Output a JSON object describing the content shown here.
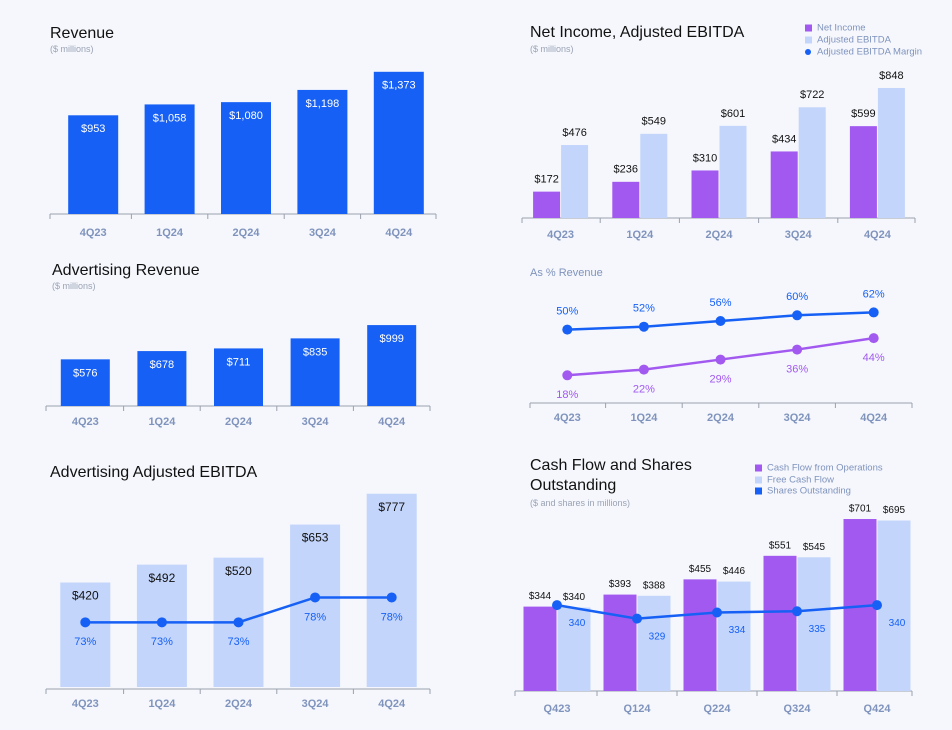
{
  "chart_data": [
    {
      "type": "bar",
      "title": "Revenue",
      "subtitle": "($ millions)",
      "categories": [
        "4Q23",
        "1Q24",
        "2Q24",
        "3Q24",
        "4Q24"
      ],
      "values": [
        953,
        1058,
        1080,
        1198,
        1373
      ],
      "value_labels": [
        "$953",
        "$1,058",
        "$1,080",
        "$1,198",
        "$1,373"
      ],
      "color": "#1660f5",
      "ylim": [
        0,
        1400
      ]
    },
    {
      "type": "bar",
      "title": "Net Income, Adjusted EBITDA",
      "subtitle": "($ millions)",
      "categories": [
        "4Q23",
        "1Q24",
        "2Q24",
        "3Q24",
        "4Q24"
      ],
      "series": [
        {
          "name": "Net Income",
          "color": "#a259f0",
          "values": [
            172,
            236,
            310,
            434,
            599
          ],
          "value_labels": [
            "$172",
            "$236",
            "$310",
            "$434",
            "$599"
          ]
        },
        {
          "name": "Adjusted EBITDA",
          "color": "#c3d5fb",
          "values": [
            476,
            549,
            601,
            722,
            848
          ],
          "value_labels": [
            "$476",
            "$549",
            "$601",
            "$722",
            "$848"
          ]
        }
      ],
      "ylim": [
        0,
        900
      ]
    },
    {
      "type": "line",
      "subtitle": "As % Revenue",
      "categories": [
        "4Q23",
        "1Q24",
        "2Q24",
        "3Q24",
        "4Q24"
      ],
      "series": [
        {
          "name": "Adjusted EBITDA Margin",
          "color": "#1660f5",
          "values": [
            50,
            52,
            56,
            60,
            62
          ],
          "value_labels": [
            "50%",
            "52%",
            "56%",
            "60%",
            "62%"
          ]
        },
        {
          "color": "#a259f0",
          "values": [
            18,
            22,
            29,
            36,
            44
          ],
          "value_labels": [
            "18%",
            "22%",
            "29%",
            "36%",
            "44%"
          ]
        }
      ],
      "ylim": [
        0,
        70
      ]
    },
    {
      "type": "bar",
      "title": "Advertising Revenue",
      "subtitle": "($ millions)",
      "categories": [
        "4Q23",
        "1Q24",
        "2Q24",
        "3Q24",
        "4Q24"
      ],
      "values": [
        576,
        678,
        711,
        835,
        999
      ],
      "value_labels": [
        "$576",
        "$678",
        "$711",
        "$835",
        "$999"
      ],
      "color": "#1660f5",
      "ylim": [
        0,
        1000
      ]
    },
    {
      "type": "bar",
      "title": "Advertising Adjusted EBITDA",
      "categories": [
        "4Q23",
        "1Q24",
        "2Q24",
        "3Q24",
        "4Q24"
      ],
      "series": [
        {
          "type": "bar",
          "color": "#c3d5fb",
          "values": [
            420,
            492,
            520,
            653,
            777
          ],
          "value_labels": [
            "$420",
            "$492",
            "$520",
            "$653",
            "$777"
          ]
        },
        {
          "type": "line",
          "axis": "y2",
          "color": "#1660f5",
          "values": [
            73,
            73,
            73,
            78,
            78
          ],
          "value_labels": [
            "73%",
            "73%",
            "73%",
            "78%",
            "78%"
          ]
        }
      ],
      "ylim": [
        0,
        800
      ],
      "y2lim": [
        60,
        100
      ]
    },
    {
      "type": "bar",
      "title": "Cash Flow and Shares Outstanding",
      "subtitle": "($ and shares in millions)",
      "categories": [
        "Q423",
        "Q124",
        "Q224",
        "Q324",
        "Q424"
      ],
      "series": [
        {
          "name": "Cash Flow from Operations",
          "type": "bar",
          "color": "#a259f0",
          "values": [
            344,
            393,
            455,
            551,
            701
          ],
          "value_labels": [
            "$344",
            "$393",
            "$455",
            "$551",
            "$701"
          ]
        },
        {
          "name": "Free Cash Flow",
          "type": "bar",
          "color": "#c3d5fb",
          "values": [
            340,
            388,
            446,
            545,
            695
          ],
          "value_labels": [
            "$340",
            "$388",
            "$446",
            "$545",
            "$695"
          ]
        },
        {
          "name": "Shares Outstanding",
          "type": "line",
          "axis": "y2",
          "color": "#1660f5",
          "values": [
            340,
            329,
            334,
            335,
            340
          ]
        }
      ],
      "ylim": [
        0,
        750
      ],
      "y2lim": [
        270,
        420
      ]
    }
  ]
}
